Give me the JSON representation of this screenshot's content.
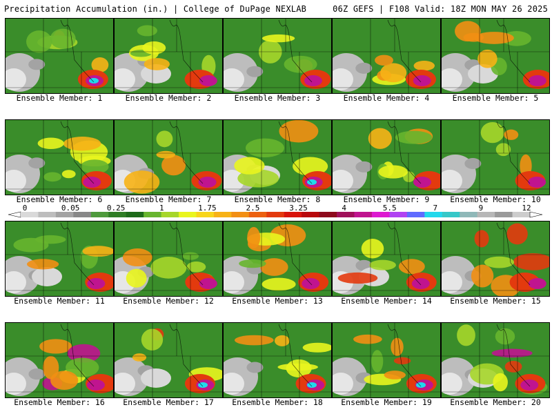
{
  "header": {
    "left": "Precipitation Accumulation (in.) | College of DuPage NEXLAB",
    "right": "06Z GEFS | F108 Valid: 18Z MON MAY 26 2025"
  },
  "member_prefix": "Ensemble Member: ",
  "members": [
    "1",
    "2",
    "3",
    "4",
    "5",
    "6",
    "7",
    "8",
    "9",
    "10",
    "11",
    "12",
    "13",
    "14",
    "15",
    "16",
    "17",
    "18",
    "19",
    "20"
  ],
  "legend": {
    "ticks": [
      "0",
      "0.05",
      "0.25",
      "1",
      "1.75",
      "2.5",
      "3.25",
      "4",
      "5.5",
      "7",
      "9",
      "12"
    ],
    "colors": [
      "#d9d9d9",
      "#bdbdbd",
      "#a3a3a3",
      "#888888",
      "#4e9a3c",
      "#2f7d25",
      "#1d6a19",
      "#67b52e",
      "#a6d62a",
      "#e9f51e",
      "#f7d51a",
      "#f7b216",
      "#f28f13",
      "#ec6110",
      "#e33a0e",
      "#d8140c",
      "#b8090c",
      "#8d0a1c",
      "#a0105a",
      "#c0148f",
      "#dd1ad0",
      "#b043f2",
      "#5f6bff",
      "#22d8ec",
      "#36c7c8",
      "#8fb8b8",
      "#b7b7b7",
      "#9a9a9a",
      "#cccccc"
    ]
  }
}
